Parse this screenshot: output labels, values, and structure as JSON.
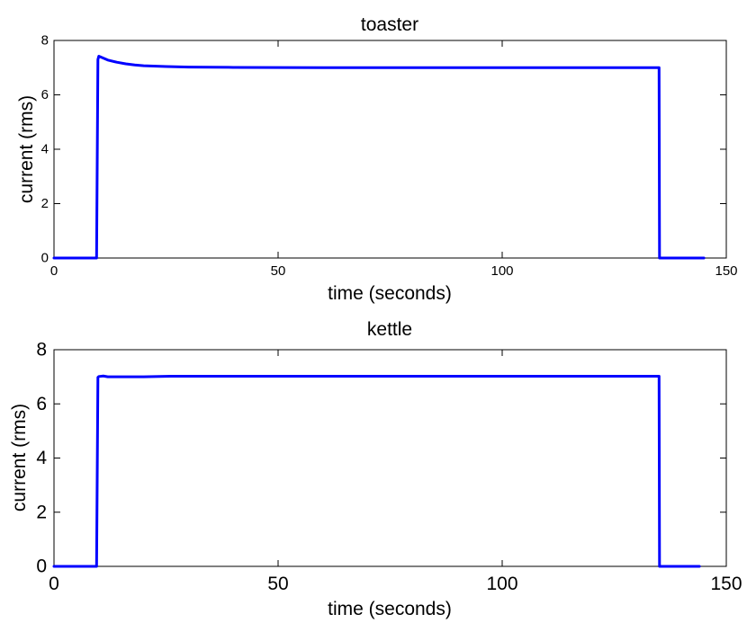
{
  "chart_data": [
    {
      "type": "line",
      "title": "toaster",
      "xlabel": "time (seconds)",
      "ylabel": "current (rms)",
      "xlim": [
        0,
        150
      ],
      "ylim": [
        0,
        8
      ],
      "xticks": [
        0,
        50,
        100,
        150
      ],
      "yticks": [
        0,
        2,
        4,
        6,
        8
      ],
      "grid": false,
      "series": [
        {
          "color": "#0000ff",
          "x": [
            0,
            9.5,
            9.8,
            10,
            11,
            12,
            14,
            16,
            18,
            20,
            25,
            30,
            40,
            60,
            80,
            100,
            120,
            135,
            135.1,
            145
          ],
          "y": [
            0,
            0,
            7.3,
            7.42,
            7.35,
            7.28,
            7.2,
            7.14,
            7.1,
            7.07,
            7.04,
            7.02,
            7.01,
            7.0,
            7.0,
            7.0,
            7.0,
            7.0,
            0,
            0
          ]
        }
      ]
    },
    {
      "type": "line",
      "title": "kettle",
      "xlabel": "time (seconds)",
      "ylabel": "current (rms)",
      "xlim": [
        0,
        150
      ],
      "ylim": [
        0,
        8
      ],
      "xticks": [
        0,
        50,
        100,
        150
      ],
      "yticks": [
        0,
        2,
        4,
        6,
        8
      ],
      "grid": false,
      "series": [
        {
          "color": "#0000ff",
          "x": [
            0,
            9.5,
            9.8,
            10,
            11,
            12,
            15,
            20,
            26,
            40,
            60,
            80,
            100,
            120,
            135,
            135.1,
            144
          ],
          "y": [
            0,
            0,
            6.98,
            7.01,
            7.03,
            7.0,
            7.0,
            7.0,
            7.02,
            7.02,
            7.02,
            7.02,
            7.02,
            7.02,
            7.02,
            0,
            0
          ]
        }
      ]
    }
  ]
}
